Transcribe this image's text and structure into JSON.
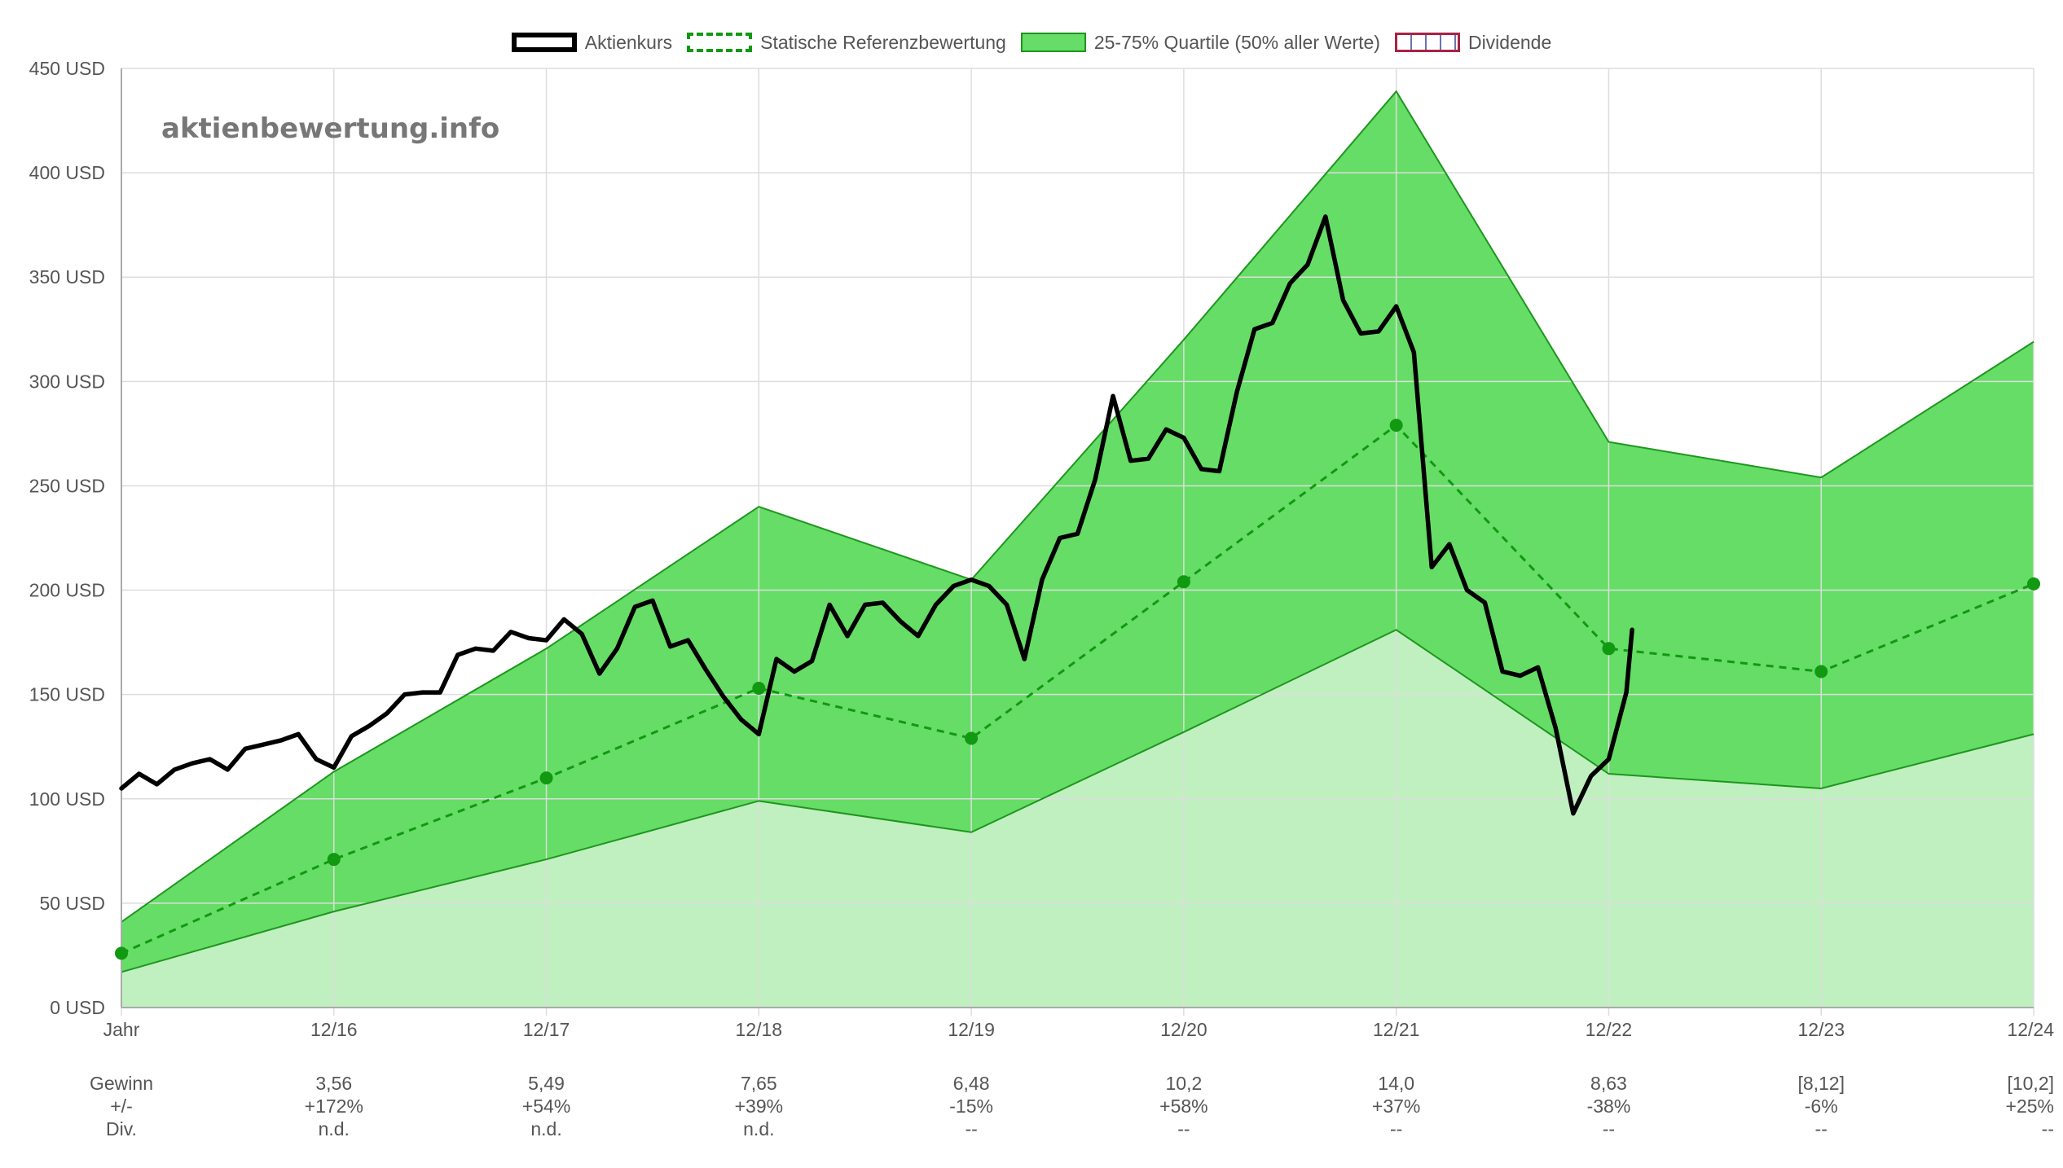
{
  "legend": {
    "price": "Aktienkurs",
    "ref": "Statische Referenzbewertung",
    "band": "25-75% Quartile (50% aller Werte)",
    "dividend": "Dividende"
  },
  "watermark": "aktienbewertung.info",
  "colors": {
    "price": "#000000",
    "ref": "#119911",
    "band_upper": "#66dd66",
    "band_lower": "#c0f0c0",
    "band_line": "#1e961e",
    "grid": "#dddddd",
    "axis": "#aaaaaa",
    "text": "#555555"
  },
  "chart_data": {
    "type": "area",
    "y_unit": "USD",
    "ylim": [
      0,
      450
    ],
    "y_ticks": [
      0,
      50,
      100,
      150,
      200,
      250,
      300,
      350,
      400,
      450
    ],
    "y_tick_labels": [
      "0 USD",
      "50 USD",
      "100 USD",
      "150 USD",
      "200 USD",
      "250 USD",
      "300 USD",
      "350 USD",
      "400 USD",
      "450 USD"
    ],
    "x_range": [
      0,
      9
    ],
    "x_labels": [
      "Jahr",
      "12/16",
      "12/17",
      "12/18",
      "12/19",
      "12/20",
      "12/21",
      "12/22",
      "12/23",
      "12/24"
    ],
    "series": [
      {
        "name": "Statische Referenzbewertung",
        "style": "dashed",
        "x": [
          0,
          1,
          2,
          3,
          4,
          5,
          6,
          7,
          8,
          9
        ],
        "values": [
          26,
          71,
          110,
          153,
          129,
          204,
          279,
          172,
          161,
          203
        ]
      },
      {
        "name": "25-75% Quartile (50% aller Werte)",
        "x": [
          0,
          1,
          2,
          3,
          4,
          5,
          6,
          7,
          8,
          9
        ],
        "upper": [
          41,
          113,
          172,
          240,
          205,
          320,
          439,
          271,
          254,
          319
        ],
        "lower": [
          17,
          46,
          71,
          99,
          84,
          132,
          181,
          112,
          105,
          131
        ]
      },
      {
        "name": "Aktienkurs",
        "x": [
          0,
          0.083,
          0.167,
          0.25,
          0.333,
          0.417,
          0.5,
          0.583,
          0.667,
          0.75,
          0.833,
          0.917,
          1.0,
          1.083,
          1.167,
          1.25,
          1.333,
          1.417,
          1.5,
          1.583,
          1.667,
          1.75,
          1.833,
          1.917,
          2.0,
          2.083,
          2.167,
          2.25,
          2.333,
          2.417,
          2.5,
          2.583,
          2.667,
          2.75,
          2.833,
          2.917,
          3.0,
          3.083,
          3.167,
          3.25,
          3.333,
          3.417,
          3.5,
          3.583,
          3.667,
          3.75,
          3.833,
          3.917,
          4.0,
          4.083,
          4.167,
          4.25,
          4.333,
          4.417,
          4.5,
          4.583,
          4.667,
          4.75,
          4.833,
          4.917,
          5.0,
          5.083,
          5.167,
          5.25,
          5.333,
          5.417,
          5.5,
          5.583,
          5.667,
          5.75,
          5.833,
          5.917,
          6.0,
          6.083,
          6.167,
          6.25,
          6.333,
          6.417,
          6.5,
          6.583,
          6.667,
          6.75,
          6.833,
          6.917,
          7.0,
          7.083,
          7.11
        ],
        "values": [
          105,
          112,
          107,
          114,
          117,
          119,
          114,
          124,
          126,
          128,
          131,
          119,
          115,
          130,
          135,
          141,
          150,
          151,
          151,
          169,
          172,
          171,
          180,
          177,
          176,
          186,
          179,
          160,
          172,
          192,
          195,
          173,
          176,
          162,
          149,
          138,
          131,
          167,
          161,
          166,
          193,
          178,
          193,
          194,
          185,
          178,
          193,
          202,
          205,
          202,
          193,
          167,
          205,
          225,
          227,
          253,
          293,
          262,
          263,
          277,
          273,
          258,
          257,
          295,
          325,
          328,
          347,
          356,
          379,
          339,
          323,
          324,
          336,
          314,
          211,
          222,
          200,
          194,
          161,
          159,
          163,
          134,
          93,
          111,
          119,
          151,
          181
        ]
      }
    ],
    "table": {
      "row_labels": [
        "Gewinn",
        "+/-",
        "Div."
      ],
      "gewinn": [
        "3,56",
        "5,49",
        "7,65",
        "6,48",
        "10,2",
        "14,0",
        "8,63",
        "[8,12]",
        "[10,2]"
      ],
      "change": [
        "+172%",
        "+54%",
        "+39%",
        "-15%",
        "+58%",
        "+37%",
        "-38%",
        "-6%",
        "+25%"
      ],
      "div": [
        "n.d.",
        "n.d.",
        "n.d.",
        "--",
        "--",
        "--",
        "--",
        "--",
        "--"
      ]
    }
  }
}
